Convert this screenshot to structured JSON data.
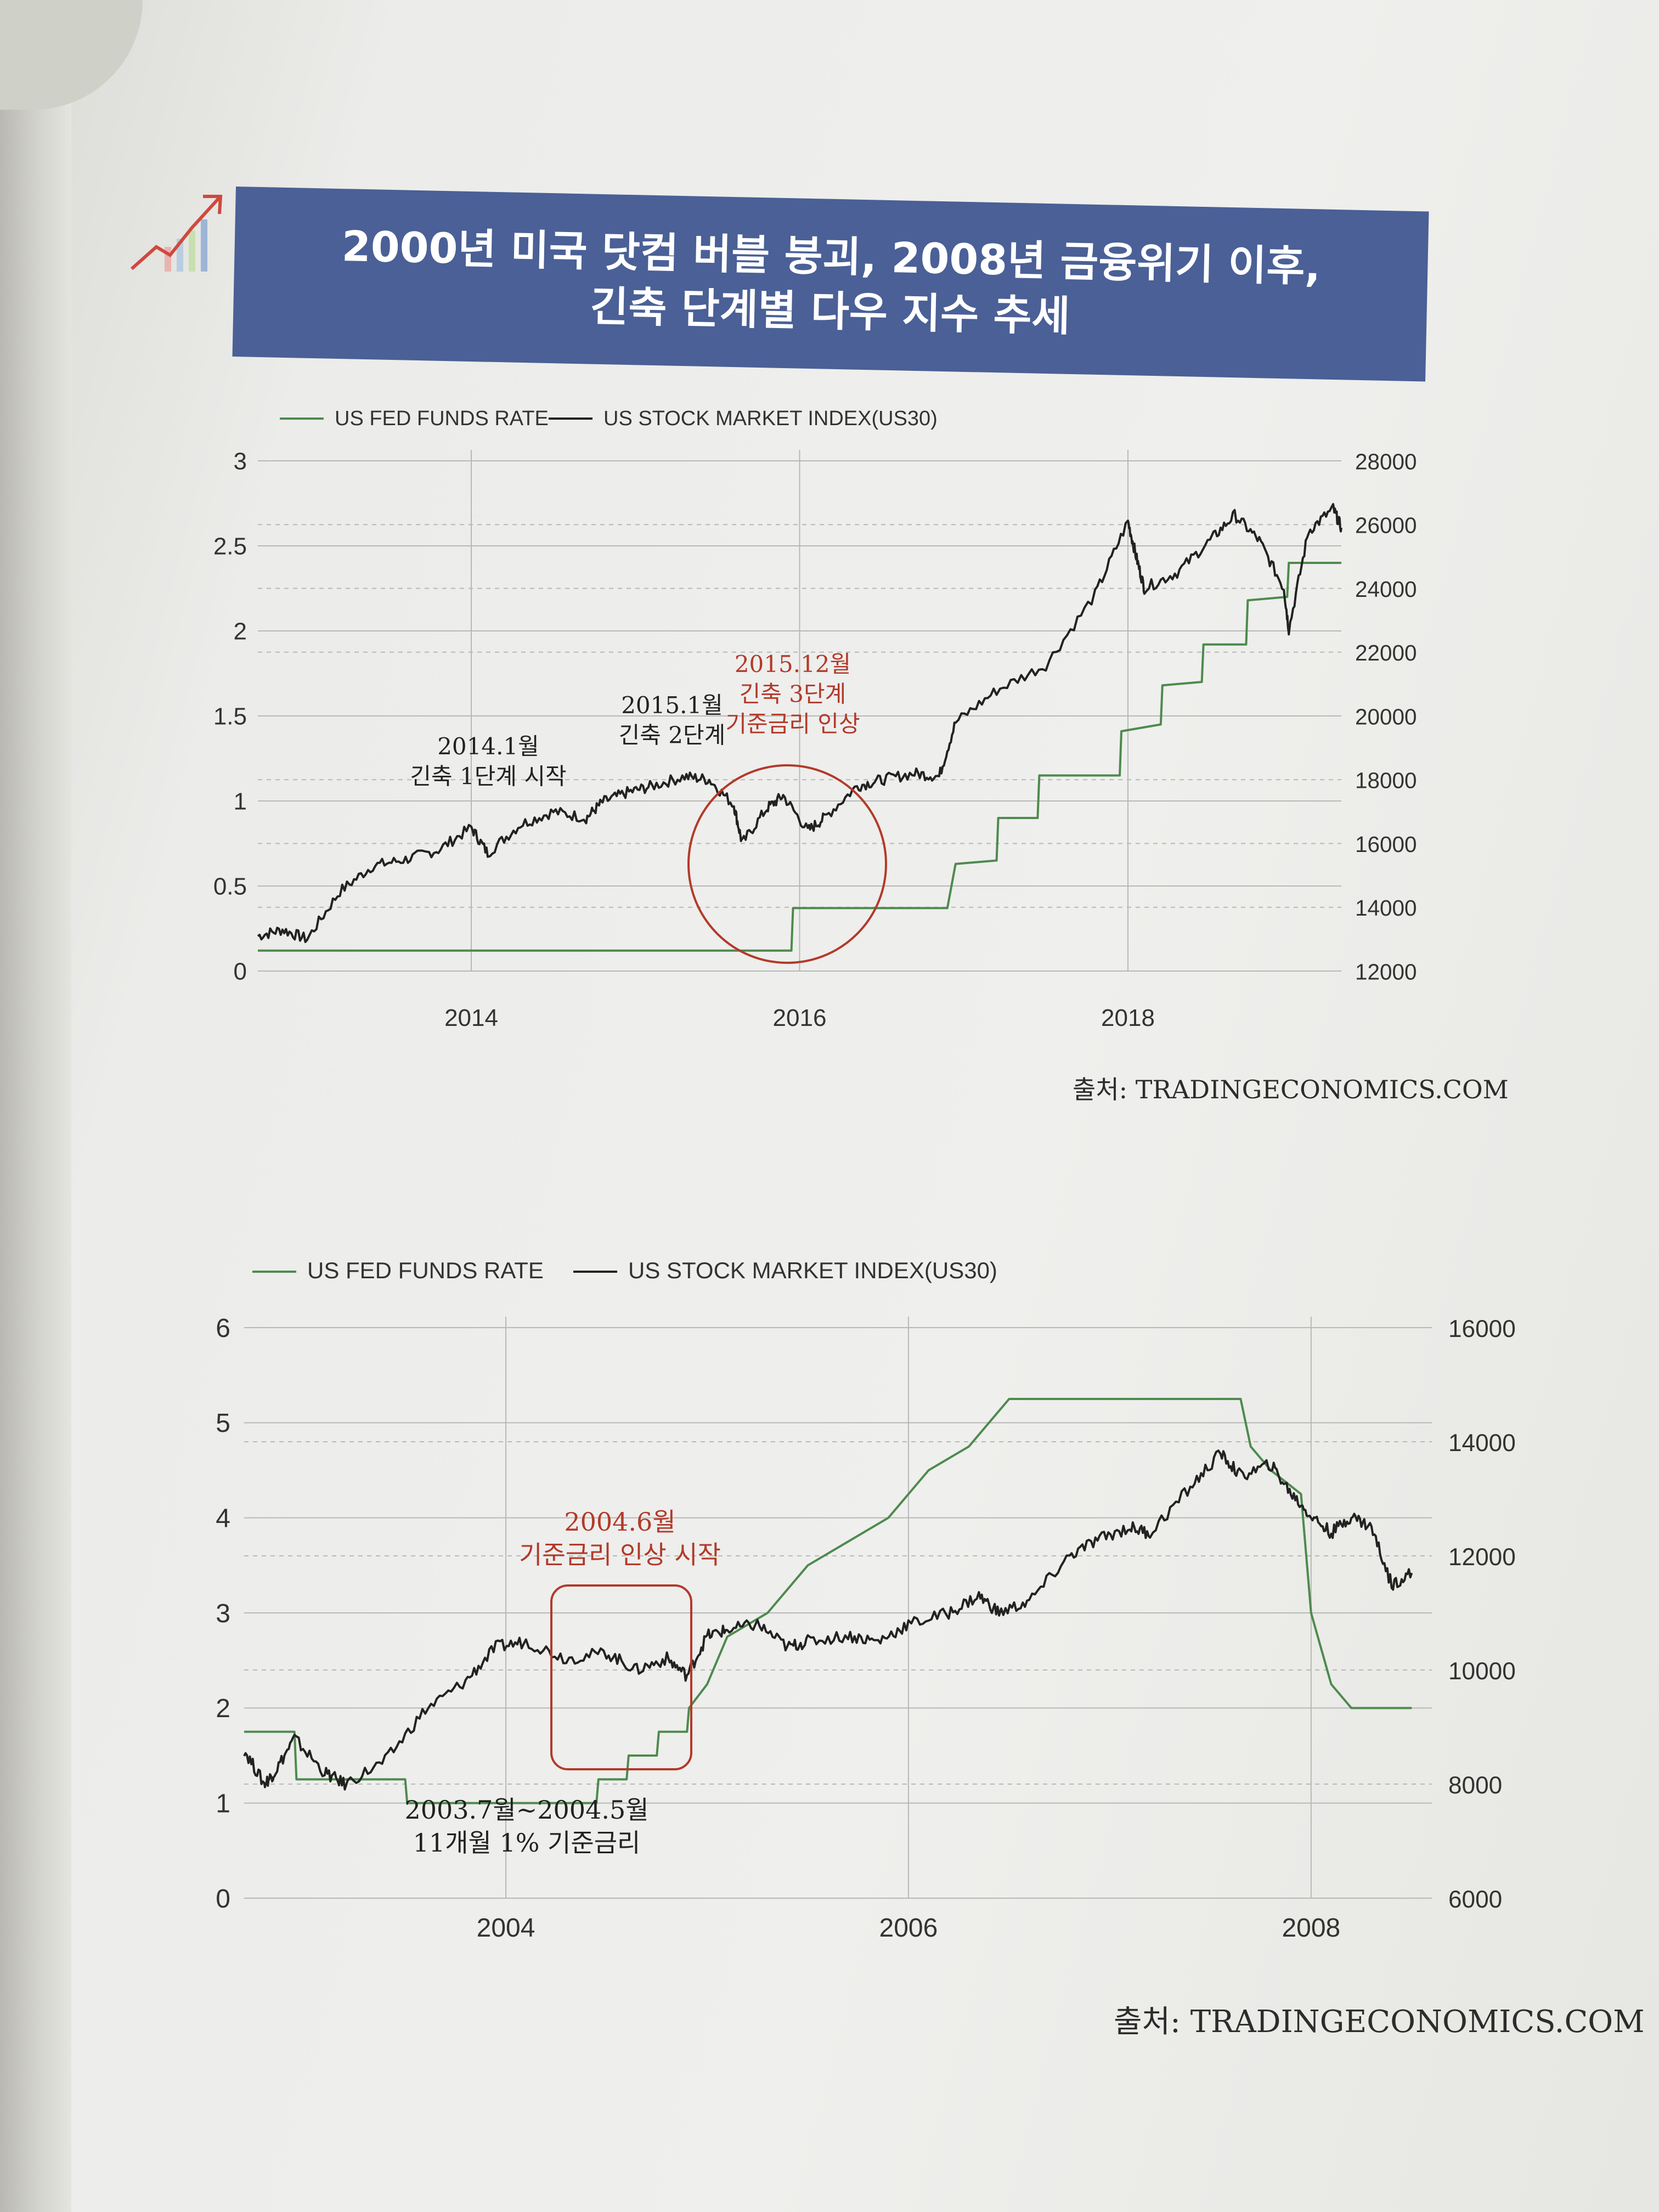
{
  "page": {
    "title_line1": "2000년 미국 닷컴 버블 붕괴, 2008년 금융위기 이후,",
    "title_line2": "긴축 단계별 다우 지수 추세",
    "source_1": "출처: TRADINGECONOMICS.COM",
    "source_2": "출처: TRADINGECONOMICS.COM",
    "icon": "rising-bar-chart-icon"
  },
  "colors": {
    "banner": "#4a6096",
    "fed_line": "#4e8a4e",
    "stock_line": "#222222",
    "annotation": "#b23a2a",
    "grid": "#b8b8b8"
  },
  "chart_data": [
    {
      "type": "line",
      "legend": [
        "US FED FUNDS RATE",
        "US STOCK MARKET INDEX(US30)"
      ],
      "legend_position": "top-left",
      "x_ticks": [
        "2014",
        "2016",
        "2018"
      ],
      "x_range": [
        2012.7,
        2019.3
      ],
      "y_left": {
        "ticks": [
          "0",
          "0.5",
          "1",
          "1.5",
          "2",
          "2.5",
          "3"
        ],
        "range": [
          0,
          3
        ]
      },
      "y_right": {
        "ticks": [
          "12000",
          "14000",
          "16000",
          "18000",
          "20000",
          "22000",
          "24000",
          "26000",
          "28000"
        ],
        "range": [
          12000,
          28000
        ]
      },
      "grid": true,
      "series": [
        {
          "name": "US FED FUNDS RATE",
          "axis": "left",
          "x": [
            2012.7,
            2015.95,
            2015.96,
            2016.9,
            2016.95,
            2017.2,
            2017.21,
            2017.45,
            2017.46,
            2017.95,
            2017.96,
            2018.2,
            2018.21,
            2018.45,
            2018.46,
            2018.72,
            2018.73,
            2018.97,
            2018.98,
            2019.3
          ],
          "values": [
            0.12,
            0.12,
            0.37,
            0.37,
            0.63,
            0.65,
            0.9,
            0.9,
            1.15,
            1.15,
            1.41,
            1.45,
            1.68,
            1.7,
            1.92,
            1.92,
            2.18,
            2.2,
            2.4,
            2.4
          ]
        },
        {
          "name": "US STOCK MARKET INDEX(US30)",
          "axis": "right",
          "x": [
            2012.7,
            2012.85,
            2013.0,
            2013.2,
            2013.4,
            2013.6,
            2013.8,
            2014.0,
            2014.1,
            2014.3,
            2014.5,
            2014.7,
            2014.8,
            2014.95,
            2015.1,
            2015.3,
            2015.45,
            2015.6,
            2015.65,
            2015.8,
            2015.9,
            2016.05,
            2016.15,
            2016.35,
            2016.5,
            2016.7,
            2016.85,
            2016.95,
            2017.2,
            2017.5,
            2017.8,
            2018.0,
            2018.05,
            2018.1,
            2018.3,
            2018.5,
            2018.65,
            2018.8,
            2018.95,
            2018.98,
            2019.1,
            2019.25,
            2019.3
          ],
          "values": [
            13100,
            13300,
            13000,
            14500,
            15300,
            15500,
            15800,
            16500,
            15700,
            16600,
            17000,
            16800,
            17300,
            17600,
            17800,
            18100,
            18000,
            17200,
            16000,
            17100,
            17500,
            16400,
            16800,
            17800,
            18000,
            18200,
            18100,
            19800,
            20800,
            21600,
            23800,
            26100,
            25000,
            24000,
            24500,
            25500,
            26300,
            25500,
            24000,
            22700,
            25800,
            26500,
            25900
          ]
        }
      ],
      "annotations": [
        {
          "text": [
            "2014.1월",
            "긴축 1단계 시작"
          ],
          "color": "black"
        },
        {
          "text": [
            "2015.1월",
            "긴축 2단계"
          ],
          "color": "black"
        },
        {
          "text": [
            "2015.12월",
            "긴축 3단계",
            "기준금리 인상"
          ],
          "color": "red",
          "shape": "circle"
        }
      ]
    },
    {
      "type": "line",
      "legend": [
        "US FED FUNDS RATE",
        "US STOCK MARKET INDEX(US30)"
      ],
      "legend_position": "top-left",
      "x_ticks": [
        "2004",
        "2006",
        "2008"
      ],
      "x_range": [
        2002.7,
        2008.6
      ],
      "y_left": {
        "ticks": [
          "0",
          "1",
          "2",
          "3",
          "4",
          "5",
          "6"
        ],
        "range": [
          0,
          6
        ]
      },
      "y_right": {
        "ticks": [
          "6000",
          "8000",
          "10000",
          "12000",
          "14000",
          "16000"
        ],
        "range": [
          6000,
          16000
        ]
      },
      "grid": true,
      "series": [
        {
          "name": "US FED FUNDS RATE",
          "axis": "left",
          "x": [
            2002.7,
            2002.95,
            2002.96,
            2003.5,
            2003.51,
            2004.45,
            2004.46,
            2004.6,
            2004.61,
            2004.75,
            2004.76,
            2004.9,
            2004.91,
            2005.0,
            2005.1,
            2005.3,
            2005.5,
            2005.7,
            2005.9,
            2006.1,
            2006.3,
            2006.4,
            2006.5,
            2007.65,
            2007.7,
            2007.8,
            2007.95,
            2008.0,
            2008.1,
            2008.2,
            2008.3,
            2008.5
          ],
          "values": [
            1.75,
            1.75,
            1.25,
            1.25,
            1.0,
            1.0,
            1.25,
            1.25,
            1.5,
            1.5,
            1.75,
            1.75,
            2.0,
            2.25,
            2.75,
            3.0,
            3.5,
            3.75,
            4.0,
            4.5,
            4.75,
            5.0,
            5.25,
            5.25,
            4.75,
            4.5,
            4.25,
            3.0,
            2.25,
            2.0,
            2.0,
            2.0
          ]
        },
        {
          "name": "US STOCK MARKET INDEX(US30)",
          "axis": "right",
          "x": [
            2002.7,
            2002.8,
            2002.85,
            2002.95,
            2003.1,
            2003.2,
            2003.4,
            2003.6,
            2003.8,
            2003.95,
            2004.1,
            2004.3,
            2004.5,
            2004.65,
            2004.8,
            2004.9,
            2005.0,
            2005.1,
            2005.25,
            2005.4,
            2005.5,
            2005.7,
            2005.85,
            2006.0,
            2006.2,
            2006.35,
            2006.45,
            2006.6,
            2006.8,
            2006.95,
            2007.1,
            2007.2,
            2007.4,
            2007.55,
            2007.65,
            2007.8,
            2007.9,
            2008.0,
            2008.1,
            2008.2,
            2008.3,
            2008.4,
            2008.5
          ],
          "values": [
            8600,
            8000,
            8200,
            8800,
            8200,
            8000,
            8400,
            9300,
            9800,
            10400,
            10500,
            10200,
            10300,
            10000,
            10200,
            9900,
            10600,
            10700,
            10800,
            10400,
            10500,
            10600,
            10500,
            10800,
            11000,
            11300,
            11000,
            11200,
            12000,
            12300,
            12500,
            12400,
            13200,
            13800,
            13400,
            13600,
            13100,
            12700,
            12400,
            12700,
            12500,
            11500,
            11700
          ]
        }
      ],
      "annotations": [
        {
          "text": [
            "2004.6월",
            "기준금리 인상 시작"
          ],
          "color": "red",
          "shape": "box"
        },
        {
          "text": [
            "2003.7월~2004.5월",
            "11개월 1% 기준금리"
          ],
          "color": "black"
        }
      ]
    }
  ]
}
